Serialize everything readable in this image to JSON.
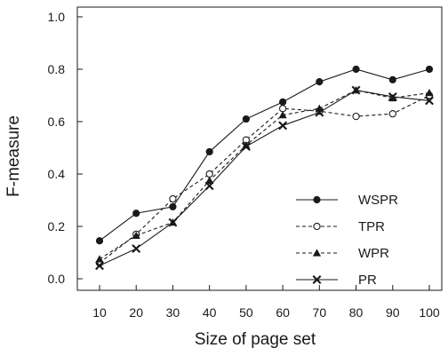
{
  "chart_data": {
    "type": "line",
    "xlabel": "Size of page set",
    "ylabel": "F-measure",
    "x": [
      10,
      20,
      30,
      40,
      50,
      60,
      70,
      80,
      90,
      100
    ],
    "xlim": [
      5,
      105
    ],
    "ylim": [
      0,
      1.0
    ],
    "yticks": [
      "0.0",
      "0.2",
      "0.4",
      "0.6",
      "0.8",
      "1.0"
    ],
    "xticks": [
      "10",
      "20",
      "30",
      "40",
      "50",
      "60",
      "70",
      "80",
      "90",
      "100"
    ],
    "grid": false,
    "legend_position": "bottom-right",
    "series": [
      {
        "name": "WSPR",
        "marker": "filled-circle",
        "line": "solid",
        "color": "#1a1a1a",
        "values": [
          0.145,
          0.25,
          0.275,
          0.485,
          0.61,
          0.675,
          0.752,
          0.8,
          0.76,
          0.8
        ]
      },
      {
        "name": "TPR",
        "marker": "open-circle",
        "line": "dashed",
        "color": "#1a1a1a",
        "values": [
          0.06,
          0.17,
          0.305,
          0.4,
          0.53,
          0.65,
          0.64,
          0.62,
          0.63,
          0.7
        ]
      },
      {
        "name": "WPR",
        "marker": "filled-triangle",
        "line": "dashed",
        "color": "#1a1a1a",
        "values": [
          0.075,
          0.165,
          0.215,
          0.375,
          0.51,
          0.625,
          0.65,
          0.72,
          0.69,
          0.71
        ]
      },
      {
        "name": "PR",
        "marker": "x",
        "line": "solid",
        "color": "#1a1a1a",
        "values": [
          0.05,
          0.115,
          0.215,
          0.355,
          0.505,
          0.585,
          0.635,
          0.72,
          0.695,
          0.68
        ]
      }
    ]
  }
}
